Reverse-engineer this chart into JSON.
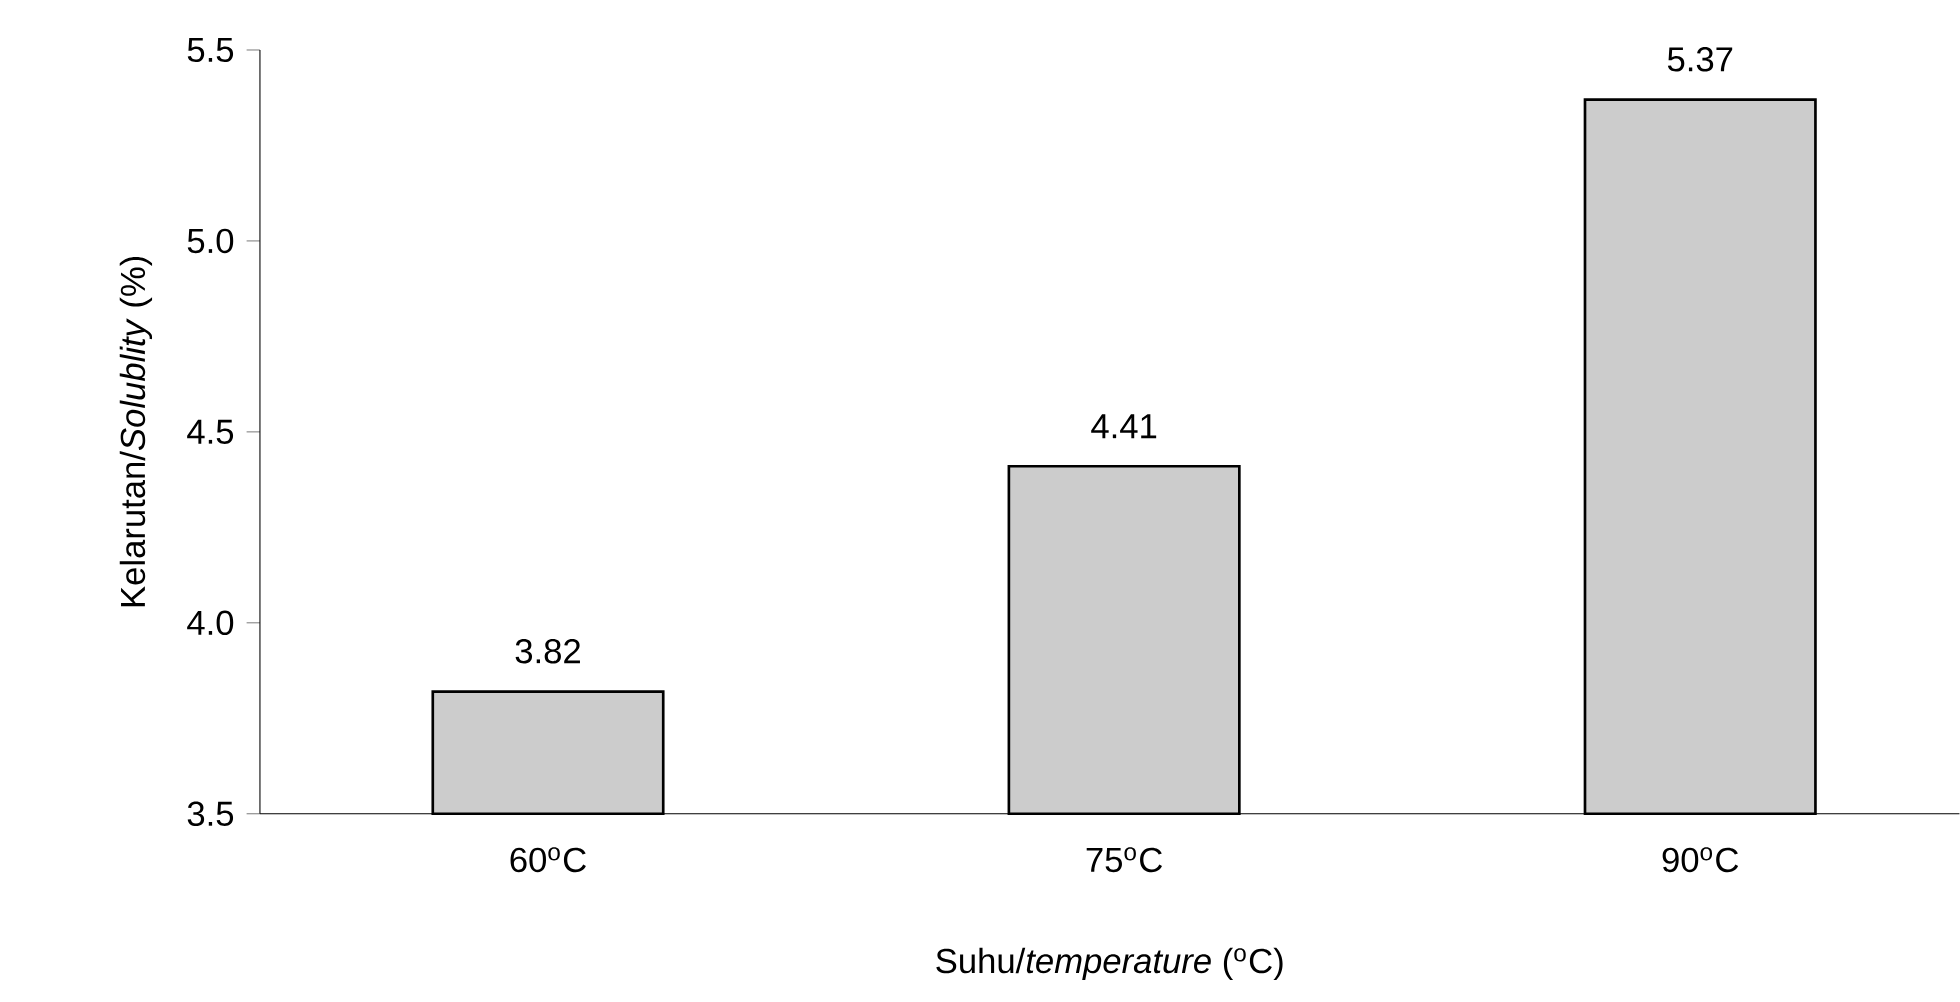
{
  "chart_data": {
    "type": "bar",
    "xlabel": "Suhu/*temperature* ($^{o}$C)",
    "ylabel": "Kelarutan/*Solublity* (%)",
    "categories": [
      "60$^{o}$C",
      "75$^{o}$C",
      "90$^{o}$C"
    ],
    "values": [
      3.82,
      4.41,
      5.37
    ],
    "value_labels": [
      "3.82",
      "4.41",
      "5.37"
    ],
    "color": "#cccccc",
    "ylim": [
      3.5,
      5.5
    ],
    "yticks": [
      {
        "value": 3.5,
        "label": "3.5"
      },
      {
        "value": 4.0,
        "label": "4.0"
      },
      {
        "value": 4.5,
        "label": "4.5"
      },
      {
        "value": 5.0,
        "label": "5.0"
      },
      {
        "value": 5.5,
        "label": "5.5"
      }
    ],
    "grid": false
  }
}
